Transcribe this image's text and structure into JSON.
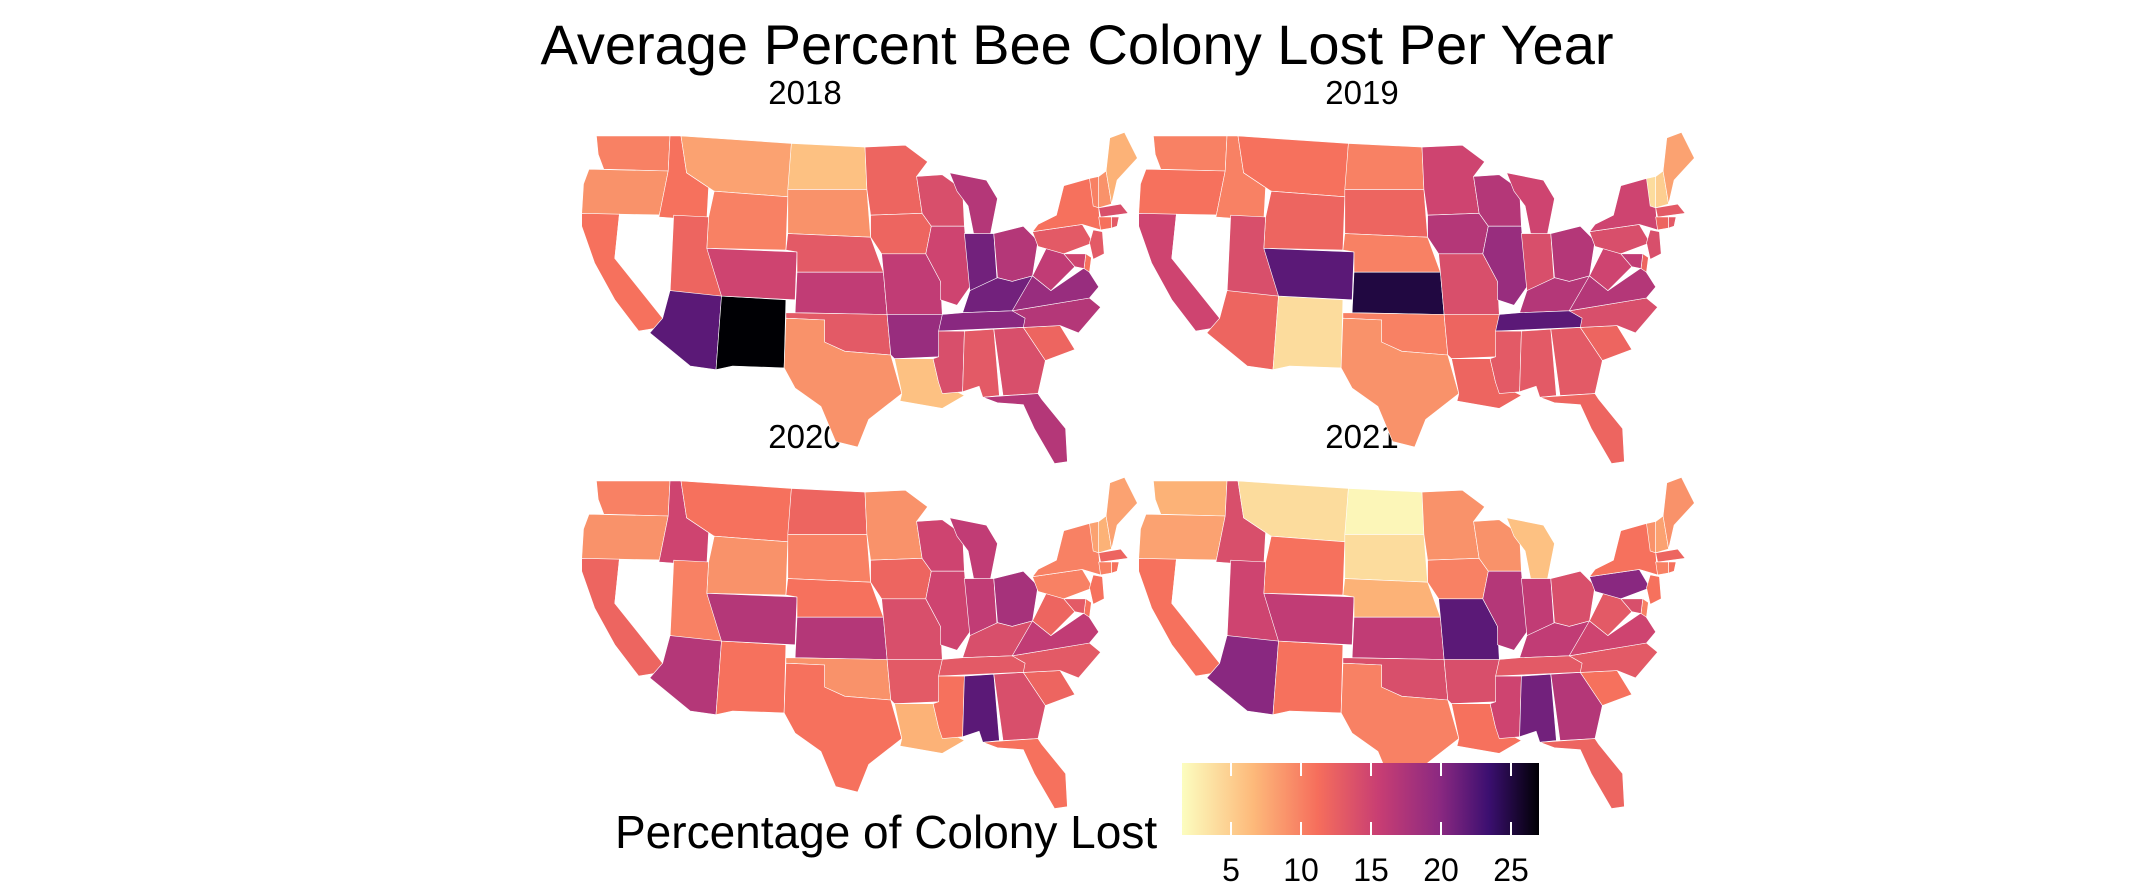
{
  "title": "Average Percent Bee Colony Lost Per Year",
  "legend": {
    "title": "Percentage of Colony Lost",
    "ticks": [
      5,
      10,
      15,
      20,
      25
    ],
    "range": [
      1.5,
      27
    ],
    "palette": "magma"
  },
  "chart_data": {
    "type": "choropleth",
    "region": "contiguous United States",
    "missing_states": [
      "NV"
    ],
    "panels": [
      {
        "label": "2018",
        "values": {
          "WA": 10,
          "OR": 9,
          "CA": 11,
          "ID": 11,
          "MT": 8,
          "WY": 10,
          "UT": 12,
          "AZ": 22,
          "NM": 27,
          "CO": 15,
          "ND": 6,
          "SD": 9,
          "NE": 13,
          "KS": 16,
          "OK": 13,
          "TX": 9,
          "MN": 12,
          "IA": 12,
          "MO": 16,
          "AR": 19,
          "LA": 6,
          "WI": 14,
          "IL": 15,
          "MI": 17,
          "IN": 21,
          "OH": 17,
          "KY": 21,
          "TN": 20,
          "MS": 14,
          "AL": 13,
          "GA": 14,
          "FL": 17,
          "SC": 12,
          "NC": 17,
          "VA": 19,
          "WV": 16,
          "PA": 13,
          "NY": 11,
          "VT": 10,
          "NH": 9,
          "ME": 7,
          "MA": 14,
          "CT": 11,
          "RI": 13,
          "NJ": 13,
          "DE": 11,
          "MD": 15
        }
      },
      {
        "label": "2019",
        "values": {
          "WA": 10,
          "OR": 11,
          "CA": 15,
          "ID": 10,
          "MT": 11,
          "WY": 12,
          "UT": 14,
          "AZ": 12,
          "NM": 4,
          "CO": 22,
          "ND": 10,
          "SD": 12,
          "NE": 10,
          "KS": 25,
          "OK": 10,
          "TX": 9,
          "MN": 15,
          "IA": 17,
          "MO": 14,
          "AR": 12,
          "LA": 12,
          "WI": 17,
          "IL": 19,
          "MI": 15,
          "IN": 14,
          "OH": 17,
          "KY": 17,
          "TN": 22,
          "MS": 13,
          "AL": 13,
          "GA": 13,
          "FL": 12,
          "SC": 12,
          "NC": 14,
          "VA": 17,
          "WV": 15,
          "PA": 14,
          "NY": 15,
          "VT": 4,
          "NH": 5,
          "ME": 8,
          "MA": 13,
          "CT": 12,
          "RI": 13,
          "NJ": 14,
          "DE": 12,
          "MD": 16
        }
      },
      {
        "label": "2020",
        "values": {
          "WA": 10,
          "OR": 9,
          "CA": 12,
          "ID": 15,
          "MT": 11,
          "WY": 9,
          "UT": 10,
          "AZ": 17,
          "NM": 11,
          "CO": 17,
          "ND": 12,
          "SD": 10,
          "NE": 11,
          "KS": 17,
          "OK": 9,
          "TX": 11,
          "MN": 9,
          "IA": 12,
          "MO": 14,
          "AR": 13,
          "LA": 7,
          "WI": 15,
          "IL": 15,
          "MI": 16,
          "IN": 16,
          "OH": 18,
          "KY": 14,
          "TN": 13,
          "MS": 11,
          "AL": 22,
          "GA": 14,
          "FL": 11,
          "SC": 12,
          "NC": 13,
          "VA": 16,
          "WV": 12,
          "PA": 10,
          "NY": 10,
          "VT": 8,
          "NH": 7,
          "ME": 8,
          "MA": 12,
          "CT": 10,
          "RI": 11,
          "NJ": 11,
          "DE": 11,
          "MD": 13
        }
      },
      {
        "label": "2021",
        "values": {
          "WA": 7,
          "OR": 8,
          "CA": 11,
          "ID": 14,
          "MT": 4,
          "WY": 11,
          "UT": 15,
          "AZ": 20,
          "NM": 11,
          "CO": 16,
          "ND": 2,
          "SD": 4,
          "NE": 7,
          "KS": 16,
          "OK": 14,
          "TX": 10,
          "MN": 9,
          "IA": 10,
          "MO": 22,
          "AR": 14,
          "LA": 11,
          "WI": 9,
          "IL": 17,
          "MI": 6,
          "IN": 16,
          "OH": 14,
          "KY": 16,
          "TN": 13,
          "MS": 15,
          "AL": 21,
          "GA": 17,
          "FL": 12,
          "SC": 11,
          "NC": 13,
          "VA": 15,
          "WV": 13,
          "PA": 20,
          "NY": 11,
          "VT": 9,
          "NH": 8,
          "ME": 9,
          "MA": 12,
          "CT": 10,
          "RI": 11,
          "NJ": 11,
          "DE": 10,
          "MD": 14
        }
      }
    ]
  }
}
